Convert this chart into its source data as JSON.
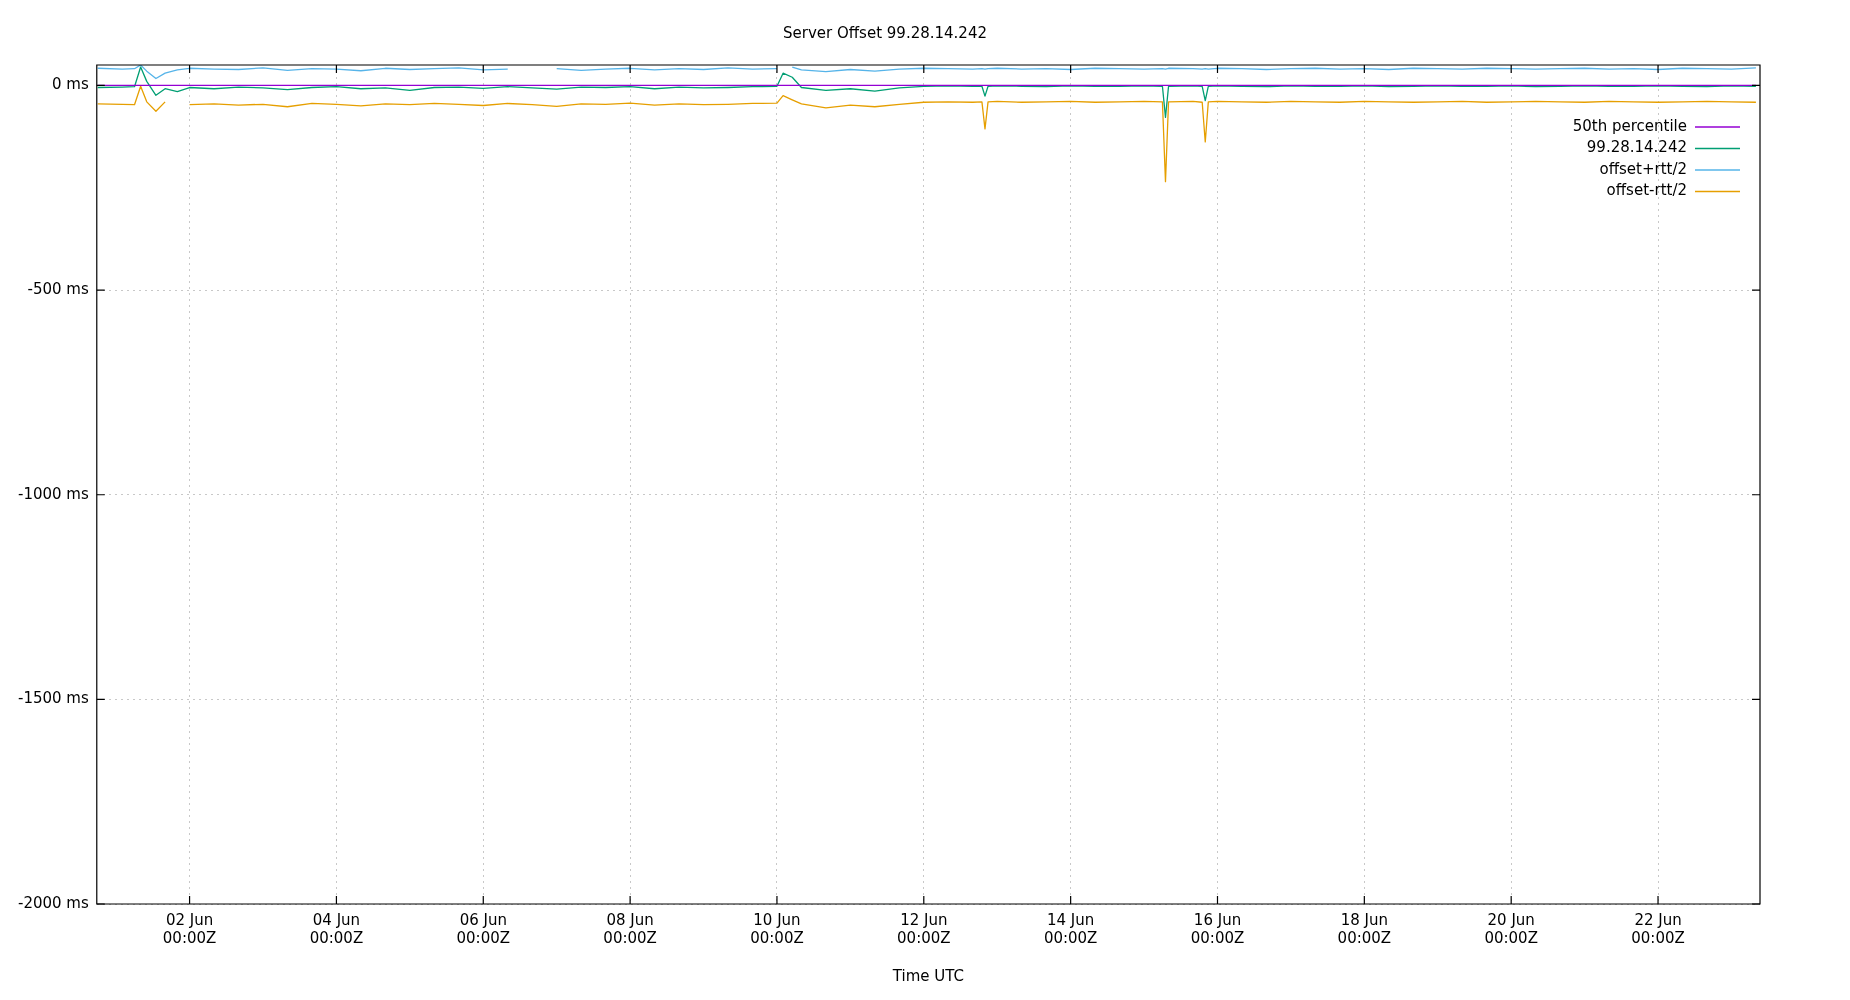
{
  "chart_data": {
    "type": "line",
    "title": "Server Offset 99.28.14.242",
    "xlabel": "Time UTC",
    "x": [
      "--05-31T18:00",
      "--06-01T02:00",
      "--06-01T06:00",
      "--06-01T08:00",
      "--06-01T10:00",
      "--06-01T13:00",
      "--06-01T16:00",
      "--06-01T20:00",
      "--06-02T00:00",
      "--06-02T08:00",
      "--06-02T16:00",
      "--06-03T00:00",
      "--06-03T08:00",
      "--06-03T16:00",
      "--06-04T00:00",
      "--06-04T08:00",
      "--06-04T16:00",
      "--06-05T00:00",
      "--06-05T08:00",
      "--06-05T16:00",
      "--06-06T00:00",
      "--06-06T08:00",
      "--06-06T16:00",
      "--06-07T00:00",
      "--06-07T08:00",
      "--06-07T16:00",
      "--06-08T00:00",
      "--06-08T08:00",
      "--06-08T16:00",
      "--06-09T00:00",
      "--06-09T08:00",
      "--06-09T16:00",
      "--06-10T00:00",
      "--06-10T02:00",
      "--06-10T05:00",
      "--06-10T08:00",
      "--06-10T16:00",
      "--06-11T00:00",
      "--06-11T08:00",
      "--06-11T16:00",
      "--06-12T00:00",
      "--06-12T08:00",
      "--06-12T16:00",
      "--06-12T19:00",
      "--06-12T20:00",
      "--06-12T21:00",
      "--06-13T00:00",
      "--06-13T08:00",
      "--06-13T16:00",
      "--06-14T00:00",
      "--06-14T08:00",
      "--06-14T16:00",
      "--06-15T00:00",
      "--06-15T06:00",
      "--06-15T07:00",
      "--06-15T08:00",
      "--06-15T16:00",
      "--06-15T19:00",
      "--06-15T20:00",
      "--06-15T21:00",
      "--06-16T00:00",
      "--06-16T08:00",
      "--06-16T16:00",
      "--06-17T00:00",
      "--06-17T08:00",
      "--06-17T16:00",
      "--06-18T00:00",
      "--06-18T08:00",
      "--06-18T16:00",
      "--06-19T00:00",
      "--06-19T08:00",
      "--06-19T16:00",
      "--06-20T00:00",
      "--06-20T08:00",
      "--06-20T16:00",
      "--06-21T00:00",
      "--06-21T08:00",
      "--06-21T16:00",
      "--06-22T00:00",
      "--06-22T08:00",
      "--06-22T16:00",
      "--06-23T00:00",
      "--06-23T08:00"
    ],
    "series": [
      {
        "name": "50th percentile",
        "color": "#9400d3",
        "x": [
          "--05-31T18:00",
          "--06-23T08:00"
        ],
        "values": [
          0,
          0
        ]
      },
      {
        "name": "99.28.14.242",
        "color": "#009e73",
        "values": [
          -5,
          -4,
          -3,
          45,
          10,
          -24,
          -8,
          -15,
          -5,
          -8,
          -4,
          -6,
          -10,
          -5,
          -3,
          -8,
          -6,
          -12,
          -5,
          -4,
          -7,
          -3,
          -6,
          -9,
          -4,
          -5,
          -3,
          -8,
          -4,
          -6,
          -5,
          -3,
          -2,
          30,
          20,
          -5,
          -12,
          -8,
          -14,
          -6,
          -2,
          -1,
          -2,
          -2,
          -26,
          -2,
          -1,
          -2,
          -3,
          -1,
          -2,
          -2,
          -1,
          -2,
          -78,
          -2,
          -1,
          -2,
          -37,
          -2,
          -1,
          -2,
          -3,
          -1,
          -2,
          -2,
          -1,
          -3,
          -2,
          -1,
          -2,
          -2,
          -1,
          -3,
          -2,
          -1,
          -2,
          -2,
          -1,
          -2,
          -3,
          -1,
          -2
        ]
      },
      {
        "name": "offset+rtt/2",
        "color": "#56b4e9",
        "values": [
          42,
          40,
          41,
          50,
          35,
          17,
          30,
          38,
          42,
          40,
          39,
          43,
          37,
          41,
          40,
          36,
          42,
          39,
          41,
          43,
          38,
          40,
          null,
          41,
          37,
          40,
          42,
          38,
          41,
          39,
          43,
          40,
          41,
          null,
          45,
          38,
          34,
          39,
          35,
          40,
          42,
          41,
          40,
          41,
          40,
          41,
          42,
          40,
          41,
          39,
          42,
          41,
          40,
          41,
          40,
          42,
          41,
          40,
          41,
          40,
          42,
          41,
          39,
          41,
          42,
          40,
          41,
          39,
          42,
          41,
          40,
          42,
          41,
          40,
          41,
          42,
          40,
          41,
          39,
          42,
          41,
          40,
          43
        ]
      },
      {
        "name": "offset-rtt/2",
        "color": "#e69f00",
        "values": [
          -45,
          -46,
          -47,
          -2,
          -40,
          -63,
          -40,
          null,
          -47,
          -45,
          -48,
          -46,
          -52,
          -44,
          -46,
          -50,
          -45,
          -47,
          -44,
          -46,
          -49,
          -44,
          -47,
          -51,
          -45,
          -46,
          -43,
          -48,
          -45,
          -47,
          -46,
          -44,
          -43,
          -25,
          -35,
          -45,
          -55,
          -48,
          -52,
          -46,
          -41,
          -40,
          -41,
          -40,
          -106,
          -40,
          -39,
          -41,
          -40,
          -39,
          -41,
          -40,
          -39,
          -40,
          -235,
          -40,
          -39,
          -41,
          -138,
          -40,
          -39,
          -40,
          -41,
          -39,
          -40,
          -41,
          -39,
          -40,
          -41,
          -40,
          -39,
          -41,
          -40,
          -39,
          -40,
          -41,
          -39,
          -40,
          -41,
          -40,
          -39,
          -40,
          -41
        ]
      }
    ],
    "xlim": [
      "--05-31T17:40",
      "--06-23T09:20"
    ],
    "xticks": [
      {
        "value": "--06-02",
        "label": "02 Jun\n00:00Z"
      },
      {
        "value": "--06-04",
        "label": "04 Jun\n00:00Z"
      },
      {
        "value": "--06-06",
        "label": "06 Jun\n00:00Z"
      },
      {
        "value": "--06-08",
        "label": "08 Jun\n00:00Z"
      },
      {
        "value": "--06-10",
        "label": "10 Jun\n00:00Z"
      },
      {
        "value": "--06-12",
        "label": "12 Jun\n00:00Z"
      },
      {
        "value": "--06-14",
        "label": "14 Jun\n00:00Z"
      },
      {
        "value": "--06-16",
        "label": "16 Jun\n00:00Z"
      },
      {
        "value": "--06-18",
        "label": "18 Jun\n00:00Z"
      },
      {
        "value": "--06-20",
        "label": "20 Jun\n00:00Z"
      },
      {
        "value": "--06-22",
        "label": "22 Jun\n00:00Z"
      }
    ],
    "ylim": [
      -2000,
      50
    ],
    "yticks": [
      {
        "value": 0,
        "label": "0 ms"
      },
      {
        "value": -500,
        "label": "-500 ms"
      },
      {
        "value": -1000,
        "label": "-1000 ms"
      },
      {
        "value": -1500,
        "label": "-1500 ms"
      },
      {
        "value": -2000,
        "label": "-2000 ms"
      }
    ],
    "grid": true,
    "legend": "top right",
    "marker": "none",
    "line_style": "solid"
  }
}
